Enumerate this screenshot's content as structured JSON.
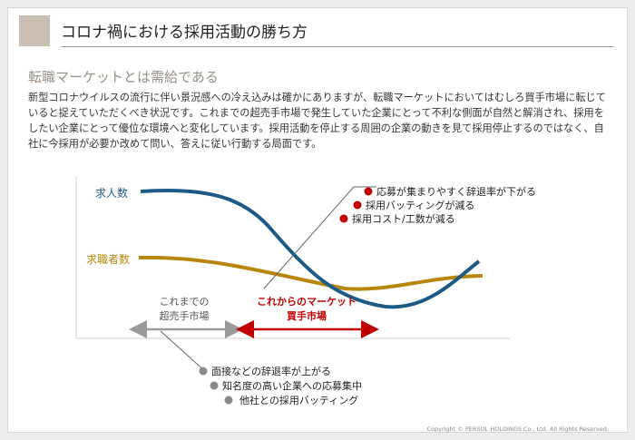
{
  "page": {
    "title": "コロナ禍における採用活動の勝ち方",
    "subtitle": "転職マーケットとは需給である",
    "body": "新型コロナウイルスの流行に伴い景況感への冷え込みは確かにありますが、転職マーケットにおいてはむしろ買手市場に転じていると捉えていただくべき状況です。これまでの超売手市場で発生していた企業にとって不利な側面が自然と解消され、採用をしたい企業にとって優位な環境へと変化しています。採用活動を停止する周囲の企業の動きを見て採用停止するのではなく、自社に今採用が必要か改めて問い、答えに従い行動する局面です。",
    "copyright": "Copyright © PERSOL HOLDINGS Co., Ltd. All Rights Reserved."
  },
  "diagram": {
    "lines": {
      "demand_label": "求人数",
      "supply_label": "求職者数",
      "demand_color": "#1d5a86",
      "supply_color": "#b8860b"
    },
    "past": {
      "line1": "これまでの",
      "line2": "超売手市場",
      "color": "#9a9a9a"
    },
    "future": {
      "line1": "これからのマーケット",
      "line2": "買手市場",
      "color": "#c00000"
    },
    "benefits": {
      "bullet_color": "#c00000",
      "items": [
        "応募が集まりやすく辞退率が下がる",
        "採用バッティングが減る",
        "採用コスト/工数が減る"
      ]
    },
    "problems": {
      "bullet_color": "#8a8a8a",
      "items": [
        "面接などの辞退率が上がる",
        "知名度の高い企業への応募集中",
        "他社との採用バッティング"
      ]
    }
  }
}
